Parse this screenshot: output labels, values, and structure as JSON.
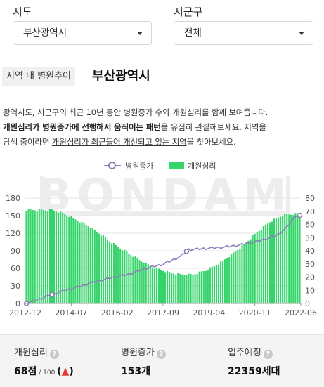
{
  "filters": {
    "sido_label": "시도",
    "sido_value": "부산광역시",
    "sigungu_label": "시군구",
    "sigungu_value": "전체"
  },
  "section": {
    "tag": "지역 내 병원추이",
    "region": "부산광역시"
  },
  "description": {
    "line1": "광역시도, 시군구의 최근 10년 동안 병원증가 수와 개원심리를 함께 보여줍니다.",
    "line2_bold": "개원심리가 병원증가에 선행해서 움직이는 패턴",
    "line2_rest": "을 유심히 관찰해보세요. 지역을",
    "line3_pre": "탐색 중이라면 ",
    "line3_underlined": "개원심리가 최근들어 개선되고 있는 지역",
    "line3_post": "을 찾아보세요."
  },
  "legend": {
    "line_series": "병원증가",
    "bar_series": "개원심리"
  },
  "watermark": "BONDAM",
  "colors": {
    "bar": "#35d46a",
    "line": "#8a80b8",
    "up": "#e53935"
  },
  "chart_data": {
    "type": "bar+line",
    "x_ticks": [
      "2012-12",
      "2014-07",
      "2016-02",
      "2017-09",
      "2019-04",
      "2020-11",
      "2022-06"
    ],
    "y_left": {
      "min": 0,
      "max": 180,
      "ticks": [
        0,
        30,
        60,
        90,
        120,
        150,
        180
      ]
    },
    "y_right": {
      "min": 0,
      "max": 80,
      "ticks": [
        0,
        10,
        20,
        30,
        40,
        50,
        60,
        70,
        80
      ]
    },
    "series": [
      {
        "name": "개원심리",
        "kind": "bar",
        "axis": "right",
        "anchors": [
          [
            0,
            71
          ],
          [
            12,
            71
          ],
          [
            18,
            68
          ],
          [
            24,
            63
          ],
          [
            30,
            58
          ],
          [
            36,
            51
          ],
          [
            42,
            44
          ],
          [
            48,
            38
          ],
          [
            54,
            32
          ],
          [
            60,
            27
          ],
          [
            66,
            24
          ],
          [
            72,
            22
          ],
          [
            78,
            22
          ],
          [
            84,
            25
          ],
          [
            90,
            30
          ],
          [
            96,
            37
          ],
          [
            102,
            45
          ],
          [
            108,
            54
          ],
          [
            114,
            62
          ],
          [
            120,
            67
          ],
          [
            126,
            68
          ],
          [
            128,
            68
          ]
        ]
      },
      {
        "name": "병원증가",
        "kind": "line",
        "axis": "left",
        "anchors": [
          [
            0,
            0
          ],
          [
            8,
            10
          ],
          [
            16,
            20
          ],
          [
            24,
            28
          ],
          [
            32,
            37
          ],
          [
            40,
            44
          ],
          [
            48,
            50
          ],
          [
            56,
            60
          ],
          [
            64,
            67
          ],
          [
            72,
            80
          ],
          [
            76,
            92
          ],
          [
            84,
            94
          ],
          [
            92,
            96
          ],
          [
            100,
            100
          ],
          [
            108,
            106
          ],
          [
            114,
            112
          ],
          [
            118,
            118
          ],
          [
            122,
            130
          ],
          [
            126,
            150
          ],
          [
            128,
            150
          ]
        ]
      }
    ],
    "points_count": 129
  },
  "stats": {
    "item1_label": "개원심리",
    "item1_value": "68점",
    "item1_scale": " / 100 ",
    "item1_open": "(",
    "item1_arrow": "▲",
    "item1_close": ")",
    "item2_label": "병원증가",
    "item2_value": "153개",
    "item3_label": "입주예정",
    "item3_value": "22359세대"
  }
}
